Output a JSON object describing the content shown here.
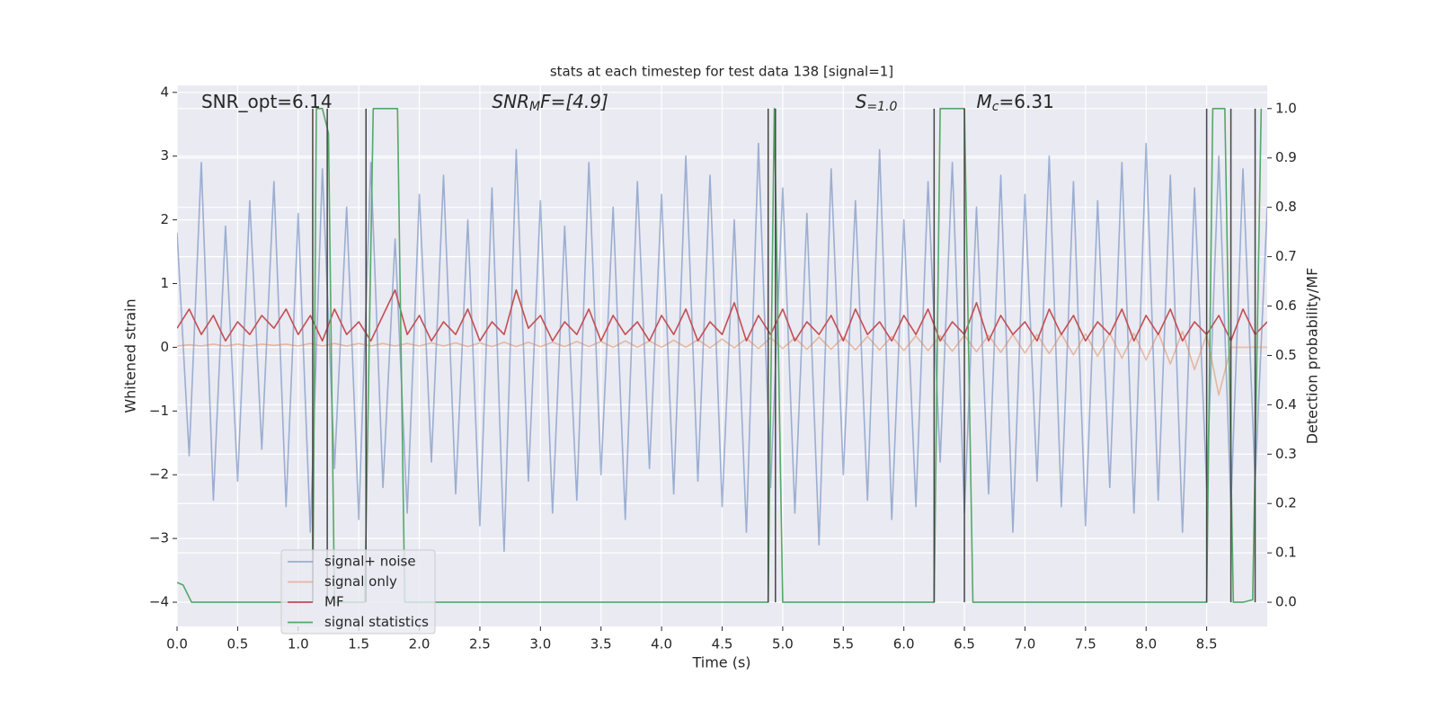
{
  "chart_data": {
    "type": "line",
    "title": "stats at each timestep for test data 138 [signal=1]",
    "xlabel": "Time (s)",
    "ylabel": "Whitened strain",
    "y2label": "Detection probability/MF",
    "annotations": [
      {
        "x": 0.2,
        "parts": [
          "SNR_opt=6.14"
        ]
      },
      {
        "x": 2.6,
        "parts": [
          "SNR",
          "M",
          "F=[4.9]"
        ]
      },
      {
        "x": 5.6,
        "parts": [
          "S",
          "=1.0"
        ]
      },
      {
        "x": 6.6,
        "parts": [
          "M",
          "c",
          "=6.31"
        ]
      }
    ],
    "xlim": [
      0,
      9.0
    ],
    "ylim": [
      -4.38,
      4.11
    ],
    "y2lim": [
      -0.049,
      1.047
    ],
    "xticks": [
      {
        "value": 0,
        "label": "0.0"
      },
      {
        "value": 0.5,
        "label": "0.5"
      },
      {
        "value": 1,
        "label": "1.0"
      },
      {
        "value": 1.5,
        "label": "1.5"
      },
      {
        "value": 2,
        "label": "2.0"
      },
      {
        "value": 2.5,
        "label": "2.5"
      },
      {
        "value": 3,
        "label": "3.0"
      },
      {
        "value": 3.5,
        "label": "3.5"
      },
      {
        "value": 4,
        "label": "4.0"
      },
      {
        "value": 4.5,
        "label": "4.5"
      },
      {
        "value": 5,
        "label": "5.0"
      },
      {
        "value": 5.5,
        "label": "5.5"
      },
      {
        "value": 6,
        "label": "6.0"
      },
      {
        "value": 6.5,
        "label": "6.5"
      },
      {
        "value": 7,
        "label": "7.0"
      },
      {
        "value": 7.5,
        "label": "7.5"
      },
      {
        "value": 8,
        "label": "8.0"
      },
      {
        "value": 8.5,
        "label": "8.5"
      }
    ],
    "yticks": [
      {
        "value": -4,
        "label": "−4"
      },
      {
        "value": -3,
        "label": "−3"
      },
      {
        "value": -2,
        "label": "−2"
      },
      {
        "value": -1,
        "label": "−1"
      },
      0,
      1,
      2,
      3,
      4
    ],
    "y2ticks": [
      {
        "value": 0,
        "label": "0.0"
      },
      0.1,
      0.2,
      0.3,
      0.4,
      0.5,
      0.6,
      0.7,
      0.8,
      0.9,
      {
        "value": 1,
        "label": "1.0"
      }
    ],
    "grid": true,
    "background": "#eaeaf2",
    "x": [
      0,
      0.1,
      0.2,
      0.3,
      0.4,
      0.5,
      0.6,
      0.7,
      0.8,
      0.9,
      1,
      1.1,
      1.2,
      1.3,
      1.4,
      1.5,
      1.6,
      1.7,
      1.8,
      1.9,
      2,
      2.1,
      2.2,
      2.3,
      2.4,
      2.5,
      2.6,
      2.7,
      2.8,
      2.9,
      3,
      3.1,
      3.2,
      3.3,
      3.4,
      3.5,
      3.6,
      3.7,
      3.8,
      3.9,
      4,
      4.1,
      4.2,
      4.3,
      4.4,
      4.5,
      4.6,
      4.7,
      4.8,
      4.9,
      5,
      5.1,
      5.2,
      5.3,
      5.4,
      5.5,
      5.6,
      5.7,
      5.8,
      5.9,
      6,
      6.1,
      6.2,
      6.3,
      6.4,
      6.5,
      6.6,
      6.7,
      6.8,
      6.9,
      7,
      7.1,
      7.2,
      7.3,
      7.4,
      7.5,
      7.6,
      7.7,
      7.8,
      7.9,
      8,
      8.1,
      8.2,
      8.3,
      8.4,
      8.5,
      8.6,
      8.7,
      8.8,
      8.9,
      9
    ],
    "series": [
      {
        "name": "signal+ noise",
        "color": "#4c72b0",
        "opacity": 0.5,
        "values": [
          1.8,
          -1.7,
          2.9,
          -2.4,
          1.9,
          -2.1,
          2.3,
          -1.6,
          2.6,
          -2.5,
          2.1,
          -2.9,
          2.8,
          -1.9,
          2.2,
          -2.7,
          2.9,
          -2.2,
          1.7,
          -2.6,
          2.4,
          -1.8,
          2.7,
          -2.3,
          2.0,
          -2.8,
          2.5,
          -3.2,
          3.1,
          -2.1,
          2.3,
          -2.6,
          1.9,
          -2.4,
          2.9,
          -2.0,
          2.2,
          -2.7,
          2.6,
          -1.9,
          2.4,
          -2.3,
          3.0,
          -2.1,
          2.7,
          -2.5,
          2.0,
          -2.9,
          3.2,
          -2.2,
          2.5,
          -2.6,
          2.1,
          -3.1,
          2.8,
          -2.0,
          2.3,
          -2.4,
          3.1,
          -2.7,
          2.0,
          -2.5,
          2.6,
          -1.8,
          2.9,
          -2.6,
          2.2,
          -2.3,
          2.7,
          -2.9,
          2.4,
          -2.1,
          3.0,
          -2.5,
          2.6,
          -2.8,
          2.3,
          -2.2,
          2.9,
          -2.6,
          3.2,
          -2.4,
          2.7,
          -2.9,
          2.5,
          -2.2,
          3.0,
          -2.5,
          2.8,
          -2.1,
          2.2
        ]
      },
      {
        "name": "signal only",
        "color": "#dd8452",
        "opacity": 0.5,
        "values": [
          0.02,
          0.04,
          0.02,
          0.05,
          0.02,
          0.05,
          0.02,
          0.05,
          0.03,
          0.05,
          0.02,
          0.06,
          0.02,
          0.06,
          0.02,
          0.06,
          0.02,
          0.06,
          0.02,
          0.06,
          0.02,
          0.07,
          0.02,
          0.07,
          0.01,
          0.07,
          0.01,
          0.08,
          0.01,
          0.08,
          0.01,
          0.08,
          0.01,
          0.09,
          0.01,
          0.09,
          0.0,
          0.1,
          0.0,
          0.1,
          0.0,
          0.11,
          0.0,
          0.12,
          -0.01,
          0.13,
          -0.01,
          0.14,
          -0.02,
          0.15,
          -0.02,
          0.15,
          -0.03,
          0.16,
          -0.03,
          0.16,
          -0.04,
          0.17,
          -0.04,
          0.17,
          -0.05,
          0.18,
          -0.05,
          0.18,
          -0.06,
          0.19,
          -0.07,
          0.19,
          -0.08,
          0.2,
          -0.09,
          0.2,
          -0.1,
          0.21,
          -0.12,
          0.21,
          -0.14,
          0.22,
          -0.17,
          0.22,
          -0.2,
          0.23,
          -0.26,
          0.25,
          -0.35,
          0.2,
          -0.75,
          0.0,
          0.0,
          0.0,
          0.0
        ]
      },
      {
        "name": "MF",
        "color": "#c44e52",
        "opacity": 1,
        "values": [
          0.3,
          0.6,
          0.2,
          0.5,
          0.1,
          0.4,
          0.2,
          0.5,
          0.3,
          0.6,
          0.2,
          0.5,
          0.1,
          0.6,
          0.2,
          0.4,
          0.1,
          0.5,
          0.9,
          0.2,
          0.5,
          0.1,
          0.4,
          0.2,
          0.6,
          0.1,
          0.4,
          0.2,
          0.9,
          0.3,
          0.5,
          0.1,
          0.4,
          0.2,
          0.6,
          0.1,
          0.5,
          0.2,
          0.4,
          0.1,
          0.5,
          0.2,
          0.6,
          0.1,
          0.4,
          0.2,
          0.7,
          0.1,
          0.5,
          0.2,
          0.6,
          0.1,
          0.4,
          0.2,
          0.5,
          0.1,
          0.6,
          0.2,
          0.4,
          0.1,
          0.5,
          0.2,
          0.6,
          0.1,
          0.4,
          0.2,
          0.7,
          0.1,
          0.5,
          0.2,
          0.4,
          0.1,
          0.6,
          0.2,
          0.5,
          0.1,
          0.4,
          0.2,
          0.6,
          0.1,
          0.5,
          0.2,
          0.6,
          0.1,
          0.4,
          0.2,
          0.5,
          0.1,
          0.6,
          0.2,
          0.4
        ]
      },
      {
        "name": "signal statistics",
        "color": "#55a868",
        "opacity": 1,
        "axis": "y2",
        "x": [
          0,
          0.05,
          0.12,
          0.3,
          1.12,
          1.15,
          1.2,
          1.25,
          1.3,
          1.55,
          1.62,
          1.82,
          1.88,
          4.88,
          4.93,
          5.0,
          6.25,
          6.3,
          6.5,
          6.57,
          8.5,
          8.55,
          8.65,
          8.72,
          8.8,
          8.88,
          8.95
        ],
        "values": [
          0.04,
          0.035,
          0.0,
          0.0,
          0.0,
          1.0,
          1.0,
          0.95,
          0.0,
          0.0,
          1.0,
          1.0,
          0.0,
          0.0,
          1.0,
          0.0,
          0.0,
          1.0,
          1.0,
          0.0,
          0.0,
          1.0,
          1.0,
          0.0,
          0.0,
          0.005,
          1.0
        ]
      }
    ],
    "vlines": {
      "x": [
        1.12,
        1.24,
        1.56,
        4.88,
        4.94,
        6.25,
        6.5,
        8.5,
        8.7,
        8.9
      ],
      "y2range": [
        0,
        1
      ],
      "color": "#444444"
    }
  }
}
